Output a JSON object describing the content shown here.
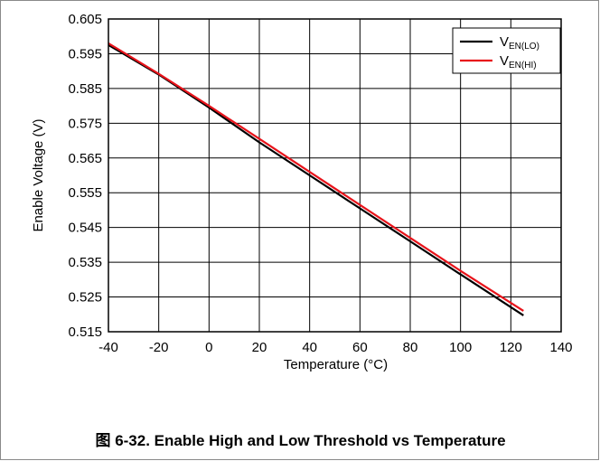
{
  "caption": "图 6-32. Enable High and Low Threshold vs Temperature",
  "chart_data": {
    "type": "line",
    "title": "",
    "xlabel": "Temperature (°C)",
    "ylabel": "Enable Voltage (V)",
    "xlim": [
      -40,
      140
    ],
    "ylim": [
      0.515,
      0.605
    ],
    "x_ticks": [
      -40,
      -20,
      0,
      20,
      40,
      60,
      80,
      100,
      120,
      140
    ],
    "x_tick_labels": [
      "-40",
      "-20",
      "0",
      "20",
      "40",
      "60",
      "80",
      "100",
      "120",
      "140"
    ],
    "y_ticks": [
      0.515,
      0.525,
      0.535,
      0.545,
      0.555,
      0.565,
      0.575,
      0.585,
      0.595,
      0.605
    ],
    "y_tick_labels": [
      "0.515",
      "0.525",
      "0.535",
      "0.545",
      "0.555",
      "0.565",
      "0.575",
      "0.585",
      "0.595",
      "0.605"
    ],
    "grid": true,
    "legend_position": "top-right",
    "series": [
      {
        "name": "V_EN(LO)",
        "name_main": "V",
        "name_sub": "EN(LO)",
        "color": "#000000",
        "x": [
          -40,
          -20,
          0,
          20,
          40,
          60,
          80,
          100,
          125
        ],
        "y": [
          0.5975,
          0.589,
          0.5795,
          0.5695,
          0.56,
          0.5505,
          0.541,
          0.5315,
          0.5197
        ]
      },
      {
        "name": "V_EN(HI)",
        "name_main": "V",
        "name_sub": "EN(HI)",
        "color": "#e8141b",
        "x": [
          -40,
          -20,
          0,
          20,
          40,
          60,
          80,
          100,
          125
        ],
        "y": [
          0.598,
          0.5892,
          0.58,
          0.5705,
          0.561,
          0.5515,
          0.542,
          0.5325,
          0.521
        ]
      }
    ]
  }
}
